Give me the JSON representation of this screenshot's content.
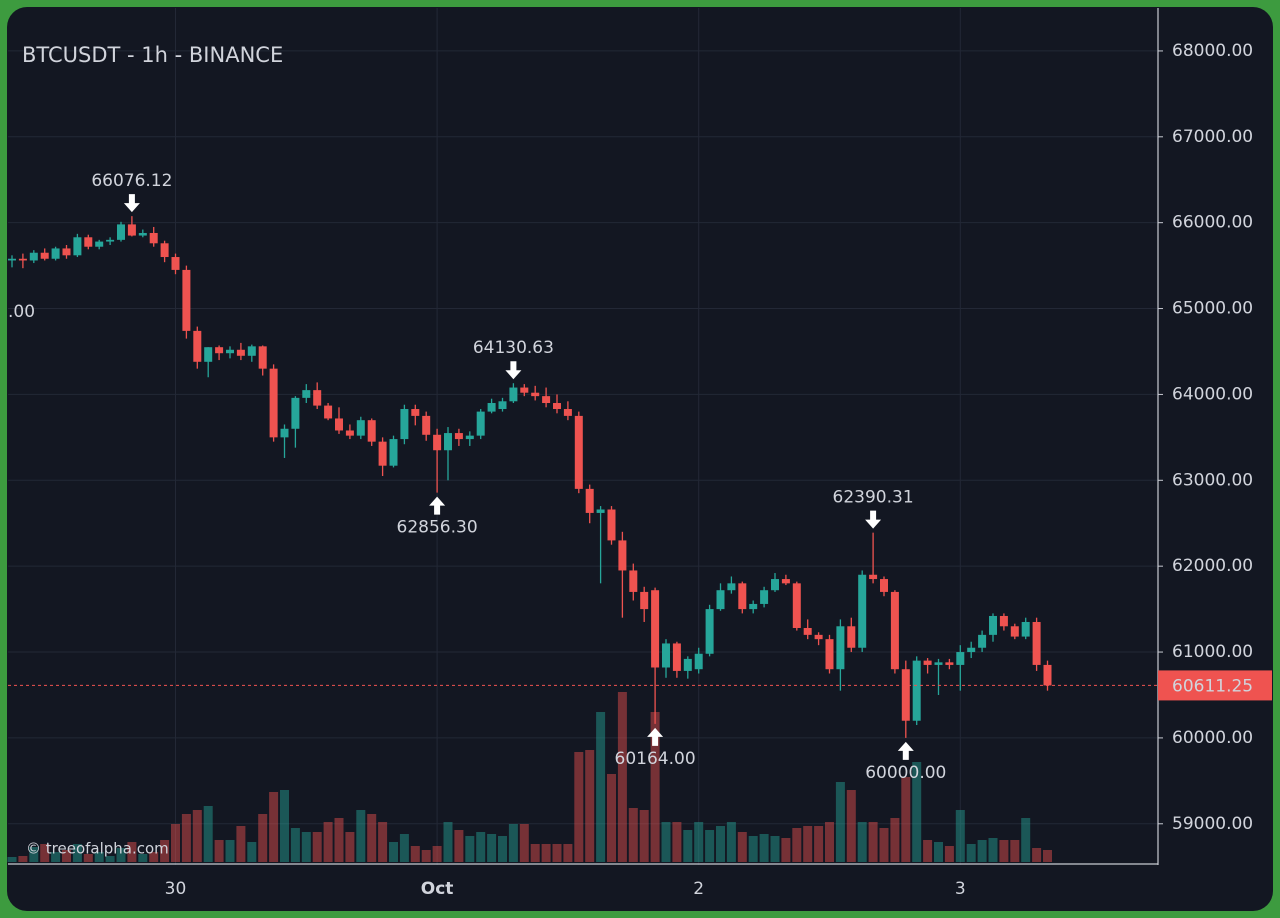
{
  "chart_data": {
    "type": "candlestick",
    "title": "BTCUSDT - 1h - BINANCE",
    "watermark": "© treeofalpha.com",
    "clipped_label": ".00",
    "up_color": "#26a69a",
    "down_color": "#ef5350",
    "grid": true,
    "ylim": [
      58520,
      68500
    ],
    "yticks": [
      {
        "value": 59000,
        "label": "59000.00"
      },
      {
        "value": 60000,
        "label": "60000.00"
      },
      {
        "value": 61000,
        "label": "61000.00"
      },
      {
        "value": 62000,
        "label": "62000.00"
      },
      {
        "value": 63000,
        "label": "63000.00"
      },
      {
        "value": 64000,
        "label": "64000.00"
      },
      {
        "value": 65000,
        "label": "65000.00"
      },
      {
        "value": 66000,
        "label": "66000.00"
      },
      {
        "value": 67000,
        "label": "67000.00"
      },
      {
        "value": 68000,
        "label": "68000.00"
      }
    ],
    "categories": [
      null,
      null,
      null,
      null,
      null,
      null,
      null,
      null,
      null,
      null,
      null,
      null,
      null,
      null,
      null,
      "30",
      null,
      null,
      null,
      null,
      null,
      null,
      null,
      null,
      null,
      null,
      null,
      null,
      null,
      null,
      null,
      null,
      null,
      null,
      null,
      null,
      null,
      null,
      null,
      "Oct",
      null,
      null,
      null,
      null,
      null,
      null,
      null,
      null,
      null,
      null,
      null,
      null,
      null,
      null,
      null,
      null,
      null,
      null,
      null,
      null,
      null,
      null,
      null,
      "2",
      null,
      null,
      null,
      null,
      null,
      null,
      null,
      null,
      null,
      null,
      null,
      null,
      null,
      null,
      null,
      null,
      null,
      null,
      null,
      null,
      null,
      null,
      null,
      "3",
      null,
      null,
      null,
      null,
      null,
      null,
      null,
      null
    ],
    "candles": [
      [
        65560,
        65620,
        65480,
        65580
      ],
      [
        65580,
        65640,
        65470,
        65560
      ],
      [
        65560,
        65680,
        65530,
        65650
      ],
      [
        65650,
        65700,
        65560,
        65580
      ],
      [
        65580,
        65720,
        65560,
        65700
      ],
      [
        65700,
        65740,
        65580,
        65620
      ],
      [
        65620,
        65870,
        65600,
        65830
      ],
      [
        65830,
        65860,
        65690,
        65720
      ],
      [
        65720,
        65800,
        65690,
        65780
      ],
      [
        65780,
        65830,
        65740,
        65800
      ],
      [
        65800,
        66010,
        65780,
        65980
      ],
      [
        65980,
        66076.12,
        65840,
        65850
      ],
      [
        65850,
        65920,
        65830,
        65880
      ],
      [
        65880,
        65950,
        65720,
        65760
      ],
      [
        65760,
        65790,
        65540,
        65600
      ],
      [
        65600,
        65640,
        65400,
        65450
      ],
      [
        65450,
        65500,
        64650,
        64740
      ],
      [
        64740,
        64790,
        64300,
        64380
      ],
      [
        64380,
        64550,
        64200,
        64550
      ],
      [
        64550,
        64570,
        64400,
        64480
      ],
      [
        64480,
        64560,
        64420,
        64520
      ],
      [
        64520,
        64600,
        64400,
        64450
      ],
      [
        64450,
        64580,
        64380,
        64560
      ],
      [
        64560,
        64570,
        64220,
        64300
      ],
      [
        64300,
        64350,
        63450,
        63500
      ],
      [
        63500,
        63650,
        63260,
        63600
      ],
      [
        63600,
        63980,
        63380,
        63960
      ],
      [
        63960,
        64120,
        63900,
        64050
      ],
      [
        64050,
        64140,
        63830,
        63870
      ],
      [
        63870,
        63900,
        63700,
        63720
      ],
      [
        63720,
        63850,
        63540,
        63580
      ],
      [
        63580,
        63650,
        63480,
        63520
      ],
      [
        63520,
        63740,
        63480,
        63700
      ],
      [
        63700,
        63720,
        63400,
        63450
      ],
      [
        63450,
        63500,
        63050,
        63170
      ],
      [
        63170,
        63520,
        63150,
        63480
      ],
      [
        63480,
        63880,
        63420,
        63830
      ],
      [
        63830,
        63880,
        63640,
        63750
      ],
      [
        63750,
        63800,
        63460,
        63530
      ],
      [
        63530,
        63600,
        62856.3,
        63350
      ],
      [
        63350,
        63620,
        63000,
        63550
      ],
      [
        63550,
        63600,
        63400,
        63480
      ],
      [
        63480,
        63570,
        63400,
        63520
      ],
      [
        63520,
        63830,
        63480,
        63800
      ],
      [
        63800,
        63950,
        63780,
        63900
      ],
      [
        63830,
        63960,
        63800,
        63920
      ],
      [
        63920,
        64130.63,
        63900,
        64080
      ],
      [
        64080,
        64120,
        63980,
        64020
      ],
      [
        64020,
        64100,
        63930,
        63980
      ],
      [
        63980,
        64080,
        63850,
        63900
      ],
      [
        63900,
        64000,
        63780,
        63830
      ],
      [
        63830,
        63920,
        63700,
        63750
      ],
      [
        63750,
        63800,
        62850,
        62900
      ],
      [
        62900,
        62950,
        62500,
        62620
      ],
      [
        62620,
        62700,
        61800,
        62660
      ],
      [
        62660,
        62700,
        62250,
        62300
      ],
      [
        62300,
        62400,
        61400,
        61950
      ],
      [
        61950,
        62030,
        61600,
        61700
      ],
      [
        61700,
        61760,
        61350,
        61500
      ],
      [
        61720,
        61750,
        60164,
        60820
      ],
      [
        60820,
        61150,
        60700,
        61100
      ],
      [
        61100,
        61120,
        60700,
        60780
      ],
      [
        60780,
        60950,
        60690,
        60920
      ],
      [
        60800,
        61050,
        60750,
        60980
      ],
      [
        60980,
        61550,
        60950,
        61500
      ],
      [
        61500,
        61800,
        61480,
        61720
      ],
      [
        61720,
        61880,
        61680,
        61800
      ],
      [
        61800,
        61820,
        61450,
        61500
      ],
      [
        61500,
        61600,
        61450,
        61560
      ],
      [
        61560,
        61760,
        61520,
        61720
      ],
      [
        61720,
        61920,
        61700,
        61850
      ],
      [
        61850,
        61900,
        61780,
        61800
      ],
      [
        61800,
        61820,
        61250,
        61280
      ],
      [
        61280,
        61380,
        61150,
        61200
      ],
      [
        61200,
        61230,
        61080,
        61150
      ],
      [
        61150,
        61200,
        60750,
        60800
      ],
      [
        60800,
        61380,
        60550,
        61300
      ],
      [
        61300,
        61400,
        61000,
        61050
      ],
      [
        61050,
        61950,
        61000,
        61900
      ],
      [
        61900,
        62390.31,
        61800,
        61850
      ],
      [
        61850,
        61880,
        61650,
        61700
      ],
      [
        61700,
        61720,
        60750,
        60800
      ],
      [
        60800,
        60900,
        60000,
        60200
      ],
      [
        60200,
        60950,
        60150,
        60900
      ],
      [
        60900,
        60930,
        60750,
        60850
      ],
      [
        60850,
        60920,
        60500,
        60880
      ],
      [
        60880,
        60920,
        60800,
        60850
      ],
      [
        60850,
        61080,
        60550,
        61000
      ],
      [
        61000,
        61120,
        60930,
        61050
      ],
      [
        61050,
        61250,
        61000,
        61200
      ],
      [
        61200,
        61450,
        61120,
        61420
      ],
      [
        61420,
        61450,
        61250,
        61300
      ],
      [
        61300,
        61330,
        61150,
        61180
      ],
      [
        61180,
        61400,
        61150,
        61350
      ],
      [
        61350,
        61400,
        60780,
        60850
      ],
      [
        60850,
        60900,
        60550,
        60611.25
      ]
    ],
    "volume": [
      5,
      6,
      15,
      18,
      10,
      12,
      18,
      8,
      10,
      6,
      14,
      20,
      8,
      10,
      22,
      38,
      48,
      52,
      56,
      22,
      22,
      36,
      20,
      48,
      70,
      72,
      34,
      30,
      30,
      40,
      44,
      30,
      52,
      48,
      40,
      20,
      28,
      16,
      12,
      16,
      40,
      32,
      26,
      30,
      28,
      26,
      38,
      38,
      18,
      18,
      18,
      18,
      110,
      112,
      150,
      88,
      170,
      54,
      52,
      150,
      40,
      40,
      32,
      40,
      32,
      36,
      40,
      30,
      26,
      28,
      26,
      24,
      34,
      36,
      36,
      40,
      80,
      72,
      40,
      40,
      34,
      44,
      85,
      100,
      22,
      20,
      16,
      52,
      18,
      22,
      24,
      22,
      22,
      44,
      14,
      12
    ],
    "annotations": [
      {
        "x": 11,
        "kind": "high",
        "value": 66076.12,
        "label": "66076.12"
      },
      {
        "x": 46,
        "kind": "high",
        "value": 64130.63,
        "label": "64130.63"
      },
      {
        "x": 39,
        "kind": "low",
        "value": 62856.3,
        "label": "62856.30"
      },
      {
        "x": 79,
        "kind": "high",
        "value": 62390.31,
        "label": "62390.31"
      },
      {
        "x": 59,
        "kind": "low",
        "value": 60164,
        "label": "60164.00"
      },
      {
        "x": 82,
        "kind": "low",
        "value": 60000,
        "label": "60000.00"
      }
    ]
  }
}
